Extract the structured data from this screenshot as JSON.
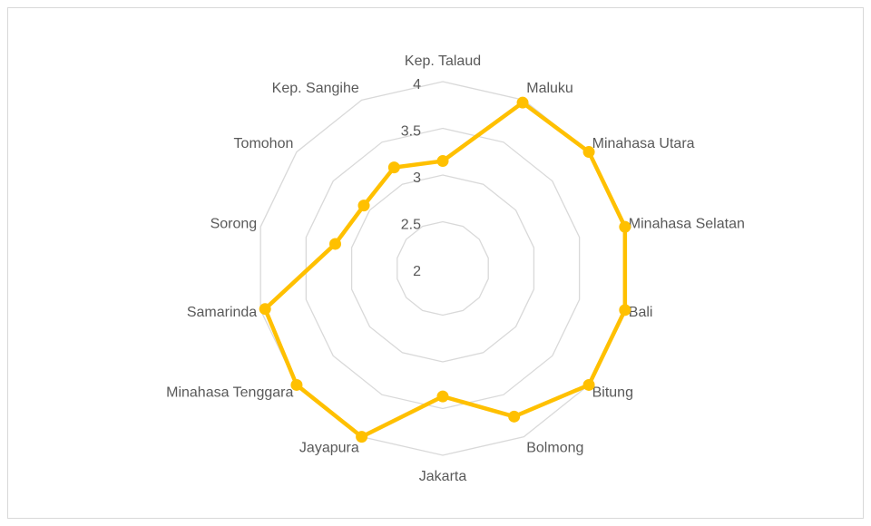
{
  "chart_data": {
    "type": "radar",
    "categories": [
      "Kep. Talaud",
      "Maluku",
      "Minahasa Utara",
      "Minahasa Selatan",
      "Bali",
      "Bitung",
      "Bolmong",
      "Jakarta",
      "Jayapura",
      "Minahasa Tenggara",
      "Samarinda",
      "Sorong",
      "Tomohon",
      "Kep. Sangihe"
    ],
    "values": [
      3.15,
      3.97,
      4.0,
      4.0,
      4.0,
      4.0,
      3.76,
      3.37,
      4.0,
      4.0,
      3.95,
      3.18,
      3.08,
      3.2
    ],
    "color": "#ffc000",
    "ylim": [
      2,
      4
    ],
    "yticks": [
      2,
      2.5,
      3,
      3.5,
      4
    ],
    "grid": true
  }
}
